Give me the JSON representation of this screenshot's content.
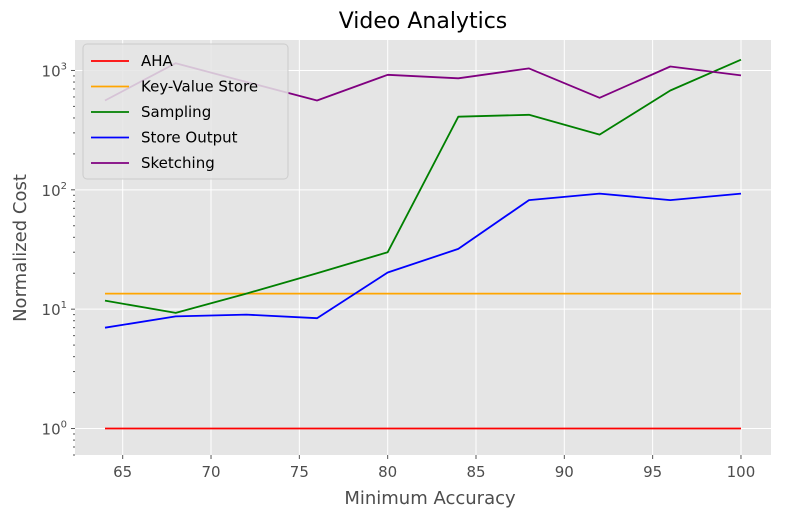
{
  "chart_data": {
    "type": "line",
    "title": "Video Analytics",
    "xlabel": "Minimum Accuracy",
    "ylabel": "Normalized Cost",
    "yscale": "log",
    "xlim": [
      62.3,
      101.7
    ],
    "ylim": [
      0.6,
      1800
    ],
    "xticks": [
      65,
      70,
      75,
      80,
      85,
      90,
      95,
      100
    ],
    "yticks": [
      {
        "value": 1,
        "base": "10",
        "exp": "0"
      },
      {
        "value": 10,
        "base": "10",
        "exp": "1"
      },
      {
        "value": 100,
        "base": "10",
        "exp": "2"
      },
      {
        "value": 1000,
        "base": "10",
        "exp": "3"
      }
    ],
    "grid": true,
    "legend_position": "top-left",
    "x": [
      64,
      68,
      72,
      76,
      80,
      84,
      88,
      92,
      96,
      100
    ],
    "series": [
      {
        "name": "AHA",
        "color": "#ff0000",
        "values": [
          1,
          1,
          1,
          1,
          1,
          1,
          1,
          1,
          1,
          1
        ]
      },
      {
        "name": "Key-Value Store",
        "color": "#ffa500",
        "values": [
          13.5,
          13.5,
          13.5,
          13.5,
          13.5,
          13.5,
          13.5,
          13.5,
          13.5,
          13.5
        ]
      },
      {
        "name": "Sampling",
        "color": "#008000",
        "values": [
          11.8,
          9.3,
          13.5,
          20,
          30,
          410,
          425,
          290,
          680,
          1230
        ]
      },
      {
        "name": "Store Output",
        "color": "#0000ff",
        "values": [
          7,
          8.7,
          9,
          8.4,
          20.3,
          32,
          82,
          93,
          82,
          93
        ]
      },
      {
        "name": "Sketching",
        "color": "#800080",
        "values": [
          560,
          1150,
          800,
          560,
          920,
          860,
          1040,
          590,
          1080,
          910
        ]
      }
    ]
  }
}
